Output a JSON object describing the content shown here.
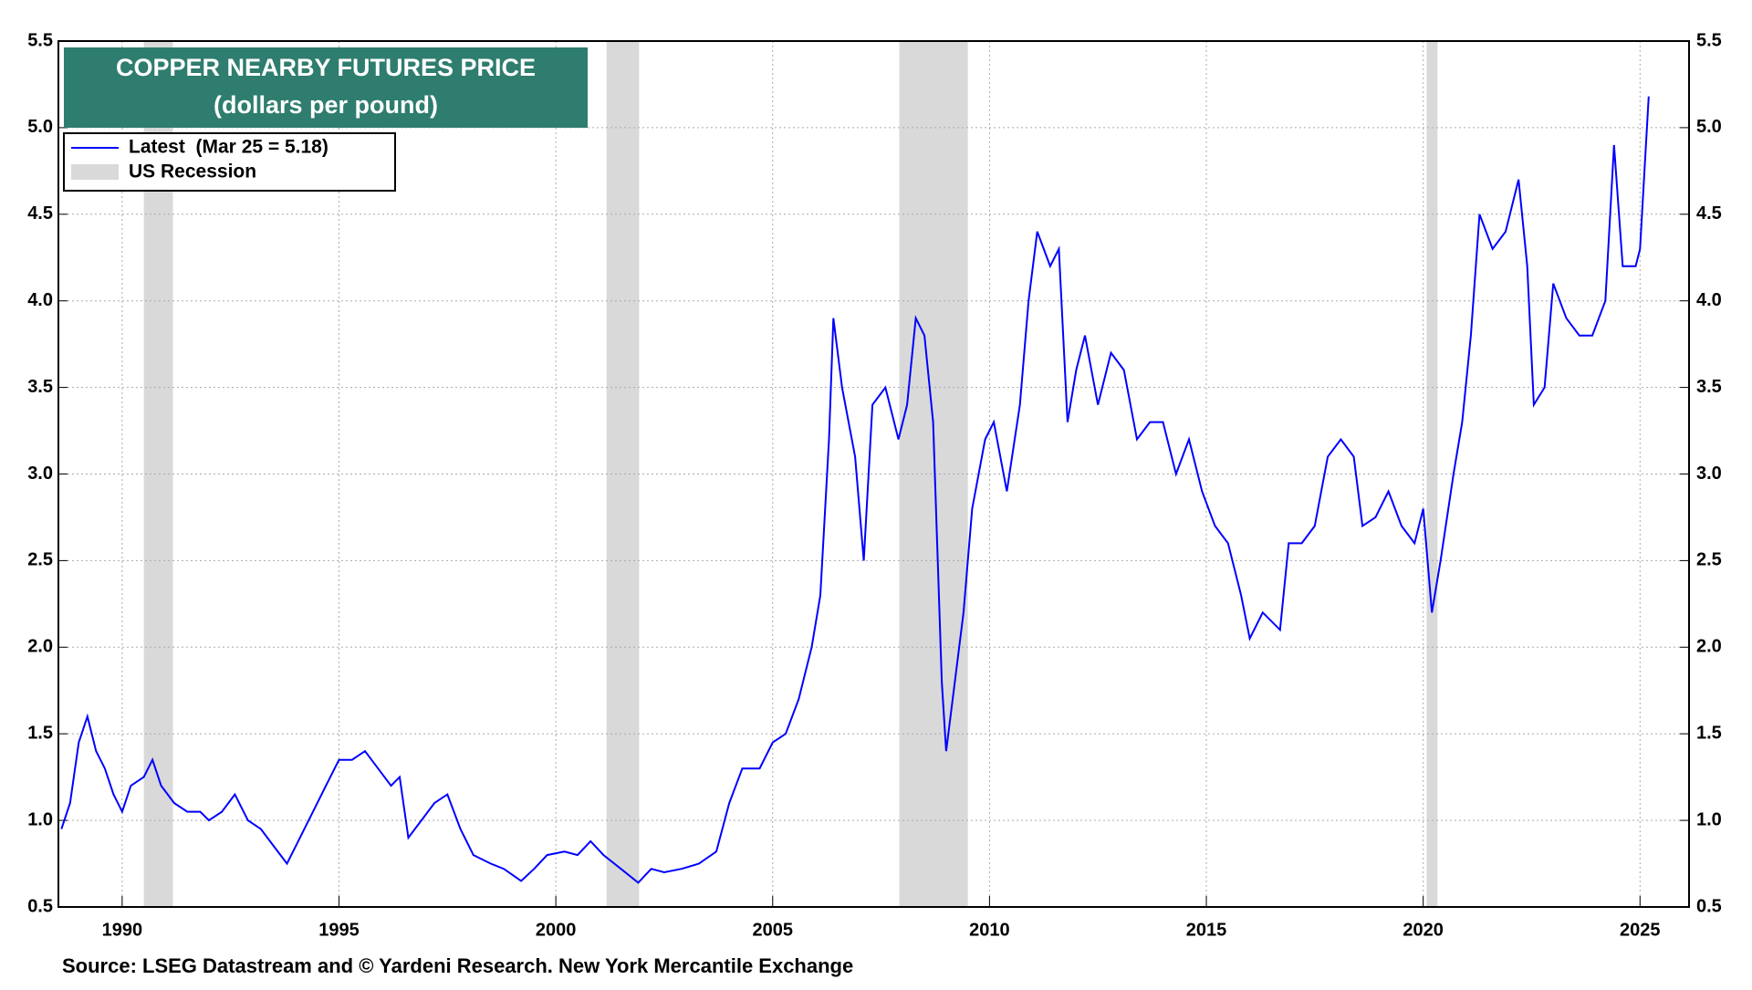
{
  "chart_data": {
    "type": "line",
    "title": "COPPER NEARBY FUTURES PRICE",
    "subtitle": "(dollars per pound)",
    "source": "Source: LSEG Datastream and © Yardeni Research. New York Mercantile Exchange",
    "x": [
      1988.6,
      1988.8,
      1989.0,
      1989.2,
      1989.4,
      1989.6,
      1989.8,
      1990.0,
      1990.2,
      1990.5,
      1990.7,
      1990.9,
      1991.2,
      1991.5,
      1991.8,
      1992.0,
      1992.3,
      1992.6,
      1992.9,
      1993.2,
      1993.5,
      1993.8,
      1994.0,
      1994.4,
      1994.7,
      1995.0,
      1995.3,
      1995.6,
      1995.9,
      1996.2,
      1996.4,
      1996.6,
      1996.9,
      1997.2,
      1997.5,
      1997.8,
      1998.1,
      1998.5,
      1998.8,
      1999.2,
      1999.5,
      1999.8,
      2000.2,
      2000.5,
      2000.8,
      2001.1,
      2001.5,
      2001.9,
      2002.2,
      2002.5,
      2002.9,
      2003.3,
      2003.7,
      2004.0,
      2004.3,
      2004.7,
      2005.0,
      2005.3,
      2005.6,
      2005.9,
      2006.1,
      2006.3,
      2006.4,
      2006.6,
      2006.9,
      2007.1,
      2007.3,
      2007.6,
      2007.9,
      2008.1,
      2008.3,
      2008.5,
      2008.7,
      2008.9,
      2009.0,
      2009.2,
      2009.4,
      2009.6,
      2009.9,
      2010.1,
      2010.4,
      2010.7,
      2010.9,
      2011.1,
      2011.4,
      2011.6,
      2011.8,
      2012.0,
      2012.2,
      2012.5,
      2012.8,
      2013.1,
      2013.4,
      2013.7,
      2014.0,
      2014.3,
      2014.6,
      2014.9,
      2015.2,
      2015.5,
      2015.8,
      2016.0,
      2016.3,
      2016.7,
      2016.9,
      2017.2,
      2017.5,
      2017.8,
      2018.1,
      2018.4,
      2018.6,
      2018.9,
      2019.2,
      2019.5,
      2019.8,
      2020.0,
      2020.2,
      2020.4,
      2020.7,
      2020.9,
      2021.1,
      2021.3,
      2021.6,
      2021.9,
      2022.2,
      2022.4,
      2022.55,
      2022.8,
      2023.0,
      2023.3,
      2023.6,
      2023.9,
      2024.2,
      2024.4,
      2024.6,
      2024.9,
      2025.0,
      2025.2
    ],
    "series": [
      {
        "name": "Latest  (Mar 25 = 5.18)",
        "color": "#0000ff",
        "values": [
          0.95,
          1.1,
          1.45,
          1.6,
          1.4,
          1.3,
          1.15,
          1.05,
          1.2,
          1.25,
          1.35,
          1.2,
          1.1,
          1.05,
          1.05,
          1.0,
          1.05,
          1.15,
          1.0,
          0.95,
          0.85,
          0.75,
          0.85,
          1.05,
          1.2,
          1.35,
          1.35,
          1.4,
          1.3,
          1.2,
          1.25,
          0.9,
          1.0,
          1.1,
          1.15,
          0.95,
          0.8,
          0.75,
          0.72,
          0.65,
          0.72,
          0.8,
          0.82,
          0.8,
          0.88,
          0.8,
          0.72,
          0.64,
          0.72,
          0.7,
          0.72,
          0.75,
          0.82,
          1.1,
          1.3,
          1.3,
          1.45,
          1.5,
          1.7,
          2.0,
          2.3,
          3.2,
          3.9,
          3.5,
          3.1,
          2.5,
          3.4,
          3.5,
          3.2,
          3.4,
          3.9,
          3.8,
          3.3,
          1.8,
          1.4,
          1.8,
          2.2,
          2.8,
          3.2,
          3.3,
          2.9,
          3.4,
          4.0,
          4.4,
          4.2,
          4.3,
          3.3,
          3.6,
          3.8,
          3.4,
          3.7,
          3.6,
          3.2,
          3.3,
          3.3,
          3.0,
          3.2,
          2.9,
          2.7,
          2.6,
          2.3,
          2.05,
          2.2,
          2.1,
          2.6,
          2.6,
          2.7,
          3.1,
          3.2,
          3.1,
          2.7,
          2.75,
          2.9,
          2.7,
          2.6,
          2.8,
          2.2,
          2.5,
          3.0,
          3.3,
          3.8,
          4.5,
          4.3,
          4.4,
          4.7,
          4.2,
          3.4,
          3.5,
          4.1,
          3.9,
          3.8,
          3.8,
          4.0,
          4.9,
          4.2,
          4.2,
          4.3,
          5.18
        ]
      }
    ],
    "recession": {
      "name": "US Recession",
      "color": "#d9d9d9",
      "periods": [
        [
          1990.5,
          1991.17
        ],
        [
          2001.17,
          2001.92
        ],
        [
          2007.92,
          2009.5
        ],
        [
          2020.08,
          2020.33
        ]
      ]
    },
    "xlim": [
      1988.53,
      2026.13
    ],
    "xticks": [
      1990,
      1995,
      2000,
      2005,
      2010,
      2015,
      2020,
      2025
    ],
    "ylim": [
      0.5,
      5.5
    ],
    "yticks": [
      {
        "value": 0.5,
        "label": "0.5"
      },
      {
        "value": 1,
        "label": "1.0"
      },
      {
        "value": 1.5,
        "label": "1.5"
      },
      {
        "value": 2,
        "label": "2.0"
      },
      {
        "value": 2.5,
        "label": "2.5"
      },
      {
        "value": 3,
        "label": "3.0"
      },
      {
        "value": 3.5,
        "label": "3.5"
      },
      {
        "value": 4,
        "label": "4.0"
      },
      {
        "value": 4.5,
        "label": "4.5"
      },
      {
        "value": 5,
        "label": "5.0"
      },
      {
        "value": 5.5,
        "label": "5.5"
      }
    ],
    "grid": true
  }
}
